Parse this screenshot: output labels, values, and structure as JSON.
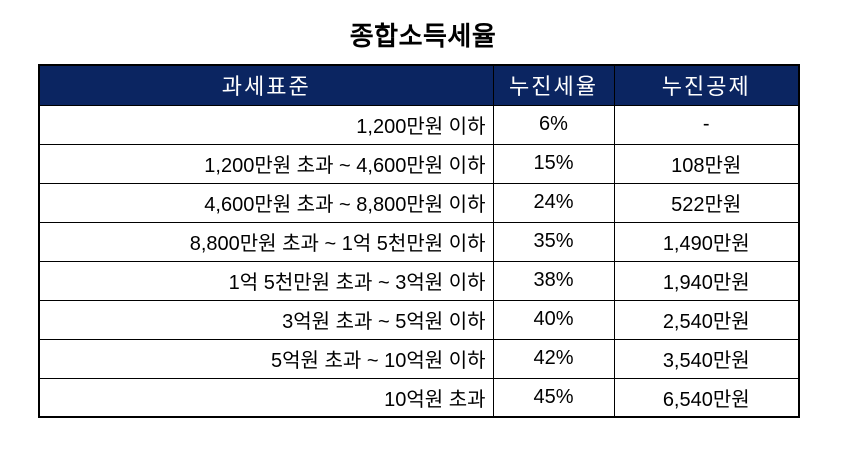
{
  "title": "종합소득세율",
  "table": {
    "columns": [
      {
        "key": "base",
        "label": "과세표준"
      },
      {
        "key": "rate",
        "label": "누진세율"
      },
      {
        "key": "deduc",
        "label": "누진공제"
      }
    ],
    "rows": [
      {
        "base": "1,200만원 이하",
        "rate": "6%",
        "deduc": "-"
      },
      {
        "base": "1,200만원 초과 ~ 4,600만원 이하",
        "rate": "15%",
        "deduc": "108만원"
      },
      {
        "base": "4,600만원 초과 ~ 8,800만원 이하",
        "rate": "24%",
        "deduc": "522만원"
      },
      {
        "base": "8,800만원 초과 ~ 1억 5천만원 이하",
        "rate": "35%",
        "deduc": "1,490만원"
      },
      {
        "base": "1억 5천만원 초과 ~ 3억원 이하",
        "rate": "38%",
        "deduc": "1,940만원"
      },
      {
        "base": "3억원 초과 ~ 5억원 이하",
        "rate": "40%",
        "deduc": "2,540만원"
      },
      {
        "base": "5억원 초과 ~ 10억원 이하",
        "rate": "42%",
        "deduc": "3,540만원"
      },
      {
        "base": "10억원 초과",
        "rate": "45%",
        "deduc": "6,540만원"
      }
    ]
  },
  "colors": {
    "header_bg": "#0B2561",
    "header_text": "#FFFFFF",
    "border": "#000000",
    "body_text": "#000000",
    "page_bg": "#FFFFFF"
  }
}
